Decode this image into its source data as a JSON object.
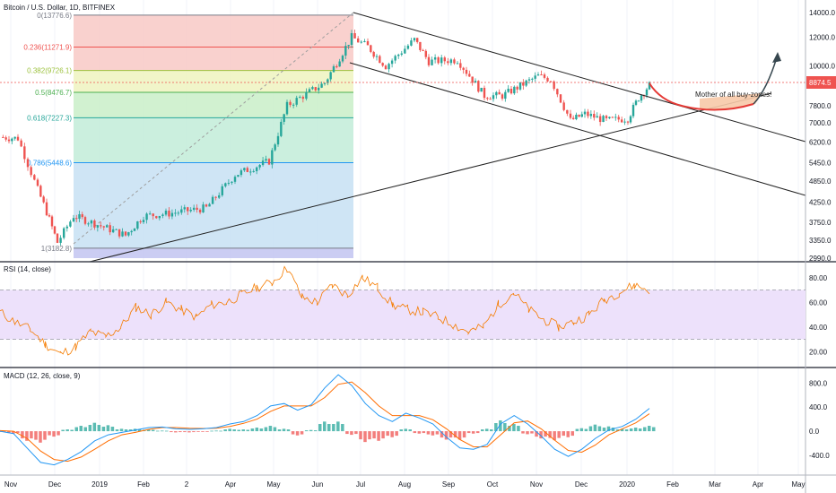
{
  "symbol_title": "Bitcoin / U.S. Dollar, 1D, BITFINEX",
  "last_price_label": "8874.5",
  "price_line_color": "#ef5350",
  "annotation_text": "Mother of all buy-zones!",
  "chart_data": [
    {
      "type": "candlestick",
      "title": "Bitcoin / U.S. Dollar, 1D, BITFINEX",
      "y_scale": "log",
      "ylim": [
        2990,
        14000
      ],
      "y_ticks": [
        "14000.0",
        "12000.0",
        "10000.0",
        "8874.5",
        "7800.0",
        "7000.0",
        "6200.0",
        "5450.0",
        "4850.0",
        "4250.0",
        "3750.0",
        "3350.0",
        "2990.0"
      ],
      "x_ticks": [
        "Nov",
        "Dec",
        "2019",
        "Feb",
        "2",
        "Apr",
        "May",
        "Jun",
        "Jul",
        "Aug",
        "Sep",
        "Oct",
        "Nov",
        "Dec",
        "2020",
        "Feb",
        "Mar",
        "Apr",
        "May"
      ],
      "bull_color": "#26a69a",
      "bear_color": "#ef5350",
      "close_path": [
        [
          "Nov",
          6400
        ],
        [
          "Nov mid",
          6350
        ],
        [
          "Nov late",
          4600
        ],
        [
          "Dec",
          4000
        ],
        [
          "Dec mid",
          3300
        ],
        [
          "Dec late",
          3900
        ],
        [
          "2019",
          3800
        ],
        [
          "Feb",
          3450
        ],
        [
          "Feb late",
          3900
        ],
        [
          "Mar",
          3950
        ],
        [
          "Apr",
          4100
        ],
        [
          "Apr early",
          5050
        ],
        [
          "May",
          5500
        ],
        [
          "May mid",
          7800
        ],
        [
          "Jun",
          8500
        ],
        [
          "Jun mid",
          9000
        ],
        [
          "Jun late",
          12000
        ],
        [
          "Jul",
          11300
        ],
        [
          "Jul mid",
          10000
        ],
        [
          "Aug",
          11800
        ],
        [
          "Aug mid",
          10300
        ],
        [
          "Sep",
          10400
        ],
        [
          "Sep late",
          8300
        ],
        [
          "Oct",
          8300
        ],
        [
          "Oct late",
          9400
        ],
        [
          "Nov",
          9200
        ],
        [
          "Nov late",
          7100
        ],
        [
          "Dec",
          7400
        ],
        [
          "Dec mid",
          7100
        ],
        [
          "2020",
          7200
        ],
        [
          "Jan mid",
          8200
        ],
        [
          "Jan late",
          8874.5
        ]
      ],
      "fibonacci": [
        {
          "label": "0(13776.6)",
          "price": 13776.6,
          "fill": "#f8c9c5"
        },
        {
          "label": "0.236(11271.9)",
          "price": 11271.9,
          "fill": "#f8c9c5"
        },
        {
          "label": "0.382(9726.1)",
          "price": 9726.1,
          "fill": "#eef3c0"
        },
        {
          "label": "0.5(8476.7)",
          "price": 8476.7,
          "fill": "#c9eec8"
        },
        {
          "label": "0.618(7227.3)",
          "price": 7227.3,
          "fill": "#c2ecd8"
        },
        {
          "label": "0.786(5448.6)",
          "price": 5448.6,
          "fill": "#c7e0f3"
        },
        {
          "label": "1(3182.8)",
          "price": 3182.8,
          "fill": "#dcdcdc"
        }
      ],
      "fib_line_colors": [
        "#787b86",
        "#ef5350",
        "#9bc13b",
        "#4caf50",
        "#26a69a",
        "#2196f3",
        "#787b86"
      ],
      "fib_bottom_fill": "#c5c8f2"
    },
    {
      "type": "line",
      "title": "RSI (14, close)",
      "ylim": [
        10,
        90
      ],
      "y_ticks": [
        "80.00",
        "60.00",
        "40.00",
        "20.00"
      ],
      "band": [
        30,
        70
      ],
      "line_color": "#f57c00",
      "band_fill": "#ede1fb",
      "values": [
        52,
        44,
        38,
        26,
        18,
        24,
        36,
        32,
        40,
        56,
        50,
        60,
        54,
        48,
        58,
        60,
        66,
        72,
        76,
        88,
        64,
        60,
        74,
        66,
        80,
        72,
        58,
        54,
        52,
        48,
        42,
        36,
        40,
        58,
        68,
        54,
        46,
        40,
        44,
        50,
        62,
        68,
        74,
        70
      ]
    },
    {
      "type": "macd",
      "title": "MACD (12, 26, close, 9)",
      "ylim": [
        -700,
        1000
      ],
      "y_ticks": [
        "800.0",
        "400.0",
        "0.0",
        "-400.0"
      ],
      "macd_color": "#2196f3",
      "signal_color": "#ff6d00",
      "hist_pos_color": "#26a69a",
      "hist_neg_color": "#ef5350",
      "macd": [
        0,
        -40,
        -280,
        -520,
        -560,
        -470,
        -340,
        -160,
        -60,
        -20,
        20,
        60,
        70,
        40,
        30,
        40,
        60,
        120,
        160,
        260,
        420,
        460,
        350,
        440,
        720,
        940,
        760,
        460,
        260,
        160,
        300,
        220,
        120,
        -100,
        -280,
        -300,
        -220,
        120,
        260,
        120,
        -80,
        -300,
        -420,
        -300,
        -120,
        20,
        80,
        200,
        380
      ],
      "signal": [
        10,
        0,
        -120,
        -330,
        -470,
        -500,
        -430,
        -300,
        -160,
        -60,
        -20,
        30,
        60,
        60,
        50,
        45,
        50,
        80,
        130,
        200,
        330,
        420,
        420,
        420,
        560,
        780,
        820,
        640,
        420,
        260,
        260,
        260,
        190,
        40,
        -140,
        -260,
        -260,
        -60,
        140,
        170,
        40,
        -150,
        -320,
        -350,
        -230,
        -60,
        40,
        140,
        290
      ],
      "hist": [
        -10,
        -40,
        -160,
        -190,
        -90,
        30,
        90,
        140,
        100,
        40,
        40,
        30,
        10,
        -20,
        -20,
        -5,
        10,
        40,
        30,
        60,
        90,
        40,
        -70,
        20,
        160,
        160,
        -60,
        -180,
        -160,
        -100,
        40,
        -40,
        -70,
        -140,
        -140,
        -40,
        40,
        180,
        120,
        -50,
        -120,
        -150,
        -100,
        50,
        110,
        80,
        40,
        60,
        90
      ]
    }
  ]
}
